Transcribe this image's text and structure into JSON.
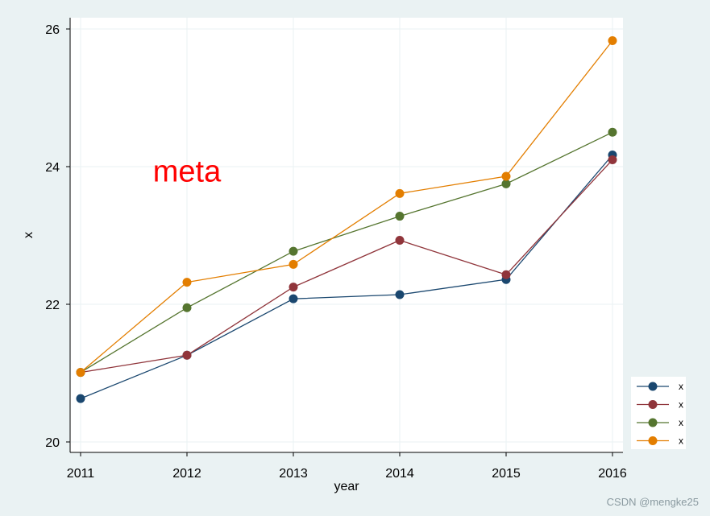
{
  "chart_data": {
    "type": "line",
    "title": "",
    "xlabel": "year",
    "ylabel": "x",
    "x": [
      2011,
      2012,
      2013,
      2014,
      2015,
      2016
    ],
    "xlim": [
      2011,
      2016
    ],
    "ylim": [
      20,
      26
    ],
    "yticks": [
      20,
      22,
      24,
      26
    ],
    "grid": true,
    "legend_position": "bottom-right",
    "annotation": {
      "text": "meta",
      "color": "#ff0000",
      "x": 2012.0,
      "y": 23.95
    },
    "series": [
      {
        "name": "x",
        "color": "#1a476f",
        "values": [
          20.63,
          21.26,
          22.08,
          22.14,
          22.36,
          24.17
        ]
      },
      {
        "name": "x",
        "color": "#90353b",
        "values": [
          21.01,
          21.26,
          22.25,
          22.93,
          22.43,
          24.1
        ]
      },
      {
        "name": "x",
        "color": "#55752f",
        "values": [
          21.01,
          21.95,
          22.77,
          23.28,
          23.75,
          24.5
        ]
      },
      {
        "name": "x",
        "color": "#e37e00",
        "values": [
          21.01,
          22.32,
          22.58,
          23.61,
          23.86,
          25.83
        ]
      }
    ]
  },
  "watermark": "CSDN @mengke25"
}
